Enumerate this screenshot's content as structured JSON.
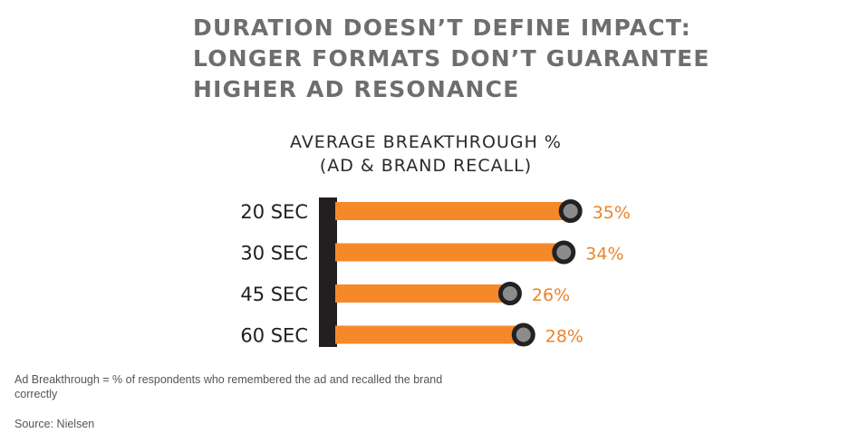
{
  "headline": [
    "DURATION DOESN’T DEFINE IMPACT:",
    "LONGER FORMATS DON’T GUARANTEE",
    "HIGHER AD RESONANCE"
  ],
  "chart_data": {
    "type": "bar",
    "title": "AVERAGE BREAKTHROUGH %",
    "subtitle": "(AD & BRAND RECALL)",
    "categories": [
      "20 SEC",
      "30 SEC",
      "45 SEC",
      "60 SEC"
    ],
    "values": [
      35,
      34,
      26,
      28
    ],
    "value_labels": [
      "35%",
      "34%",
      "26%",
      "28%"
    ],
    "orientation": "horizontal",
    "xlim": [
      0,
      40
    ],
    "colors": {
      "bar": "#f5892a",
      "marker_fill": "#8c8c8c",
      "marker_ring": "#222222",
      "value_label": "#e8852e",
      "axis": "#231f20"
    },
    "grid": false
  },
  "footnote": "Ad Breakthrough = % of respondents who remembered the ad and recalled the brand correctly",
  "source": "Source: Nielsen"
}
